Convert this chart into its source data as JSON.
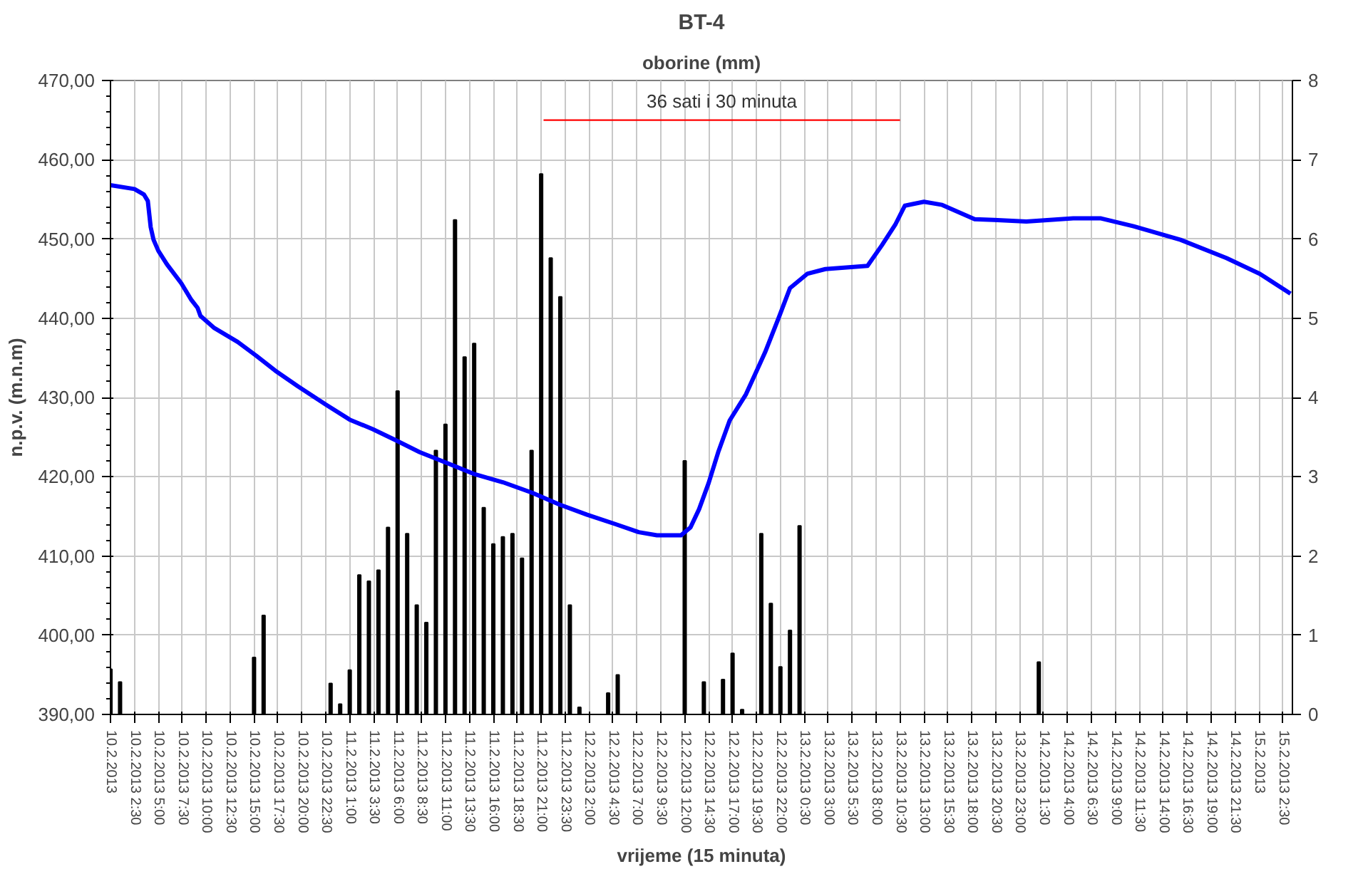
{
  "chart_data": {
    "type": "line",
    "title": "BT-4",
    "y2label": "oborine (mm)",
    "xlabel": "vrijeme (15 minuta)",
    "ylabel": "n.p.v. (m.n.m)",
    "xlim": [
      "2013-02-10T00:00",
      "2013-02-15T03:30"
    ],
    "xticks": [
      {
        "value": "2013-02-10T00:00",
        "label": "10.2.2013"
      },
      {
        "value": "2013-02-10T02:30",
        "label": "10.2.2013 2:30"
      },
      {
        "value": "2013-02-10T05:00",
        "label": "10.2.2013 5:00"
      },
      {
        "value": "2013-02-10T07:30",
        "label": "10.2.2013 7:30"
      },
      {
        "value": "2013-02-10T10:00",
        "label": "10.2.2013 10:00"
      },
      {
        "value": "2013-02-10T12:30",
        "label": "10.2.2013 12:30"
      },
      {
        "value": "2013-02-10T15:00",
        "label": "10.2.2013 15:00"
      },
      {
        "value": "2013-02-10T17:30",
        "label": "10.2.2013 17:30"
      },
      {
        "value": "2013-02-10T20:00",
        "label": "10.2.2013 20:00"
      },
      {
        "value": "2013-02-10T22:30",
        "label": "10.2.2013 22:30"
      },
      {
        "value": "2013-02-11T01:00",
        "label": "11.2.2013 1:00"
      },
      {
        "value": "2013-02-11T03:30",
        "label": "11.2.2013 3:30"
      },
      {
        "value": "2013-02-11T06:00",
        "label": "11.2.2013 6:00"
      },
      {
        "value": "2013-02-11T08:30",
        "label": "11.2.2013 8:30"
      },
      {
        "value": "2013-02-11T11:00",
        "label": "11.2.2013 11:00"
      },
      {
        "value": "2013-02-11T13:30",
        "label": "11.2.2013 13:30"
      },
      {
        "value": "2013-02-11T16:00",
        "label": "11.2.2013 16:00"
      },
      {
        "value": "2013-02-11T18:30",
        "label": "11.2.2013 18:30"
      },
      {
        "value": "2013-02-11T21:00",
        "label": "11.2.2013 21:00"
      },
      {
        "value": "2013-02-11T23:30",
        "label": "11.2.2013 23:30"
      },
      {
        "value": "2013-02-12T02:00",
        "label": "12.2.2013 2:00"
      },
      {
        "value": "2013-02-12T04:30",
        "label": "12.2.2013 4:30"
      },
      {
        "value": "2013-02-12T07:00",
        "label": "12.2.2013 7:00"
      },
      {
        "value": "2013-02-12T09:30",
        "label": "12.2.2013 9:30"
      },
      {
        "value": "2013-02-12T12:00",
        "label": "12.2.2013 12:00"
      },
      {
        "value": "2013-02-12T14:30",
        "label": "12.2.2013 14:30"
      },
      {
        "value": "2013-02-12T17:00",
        "label": "12.2.2013 17:00"
      },
      {
        "value": "2013-02-12T19:30",
        "label": "12.2.2013 19:30"
      },
      {
        "value": "2013-02-12T22:00",
        "label": "12.2.2013 22:00"
      },
      {
        "value": "2013-02-13T00:30",
        "label": "13.2.2013 0:30"
      },
      {
        "value": "2013-02-13T03:00",
        "label": "13.2.2013 3:00"
      },
      {
        "value": "2013-02-13T05:30",
        "label": "13.2.2013 5:30"
      },
      {
        "value": "2013-02-13T08:00",
        "label": "13.2.2013 8:00"
      },
      {
        "value": "2013-02-13T10:30",
        "label": "13.2.2013 10:30"
      },
      {
        "value": "2013-02-13T13:00",
        "label": "13.2.2013 13:00"
      },
      {
        "value": "2013-02-13T15:30",
        "label": "13.2.2013 15:30"
      },
      {
        "value": "2013-02-13T18:00",
        "label": "13.2.2013 18:00"
      },
      {
        "value": "2013-02-13T20:30",
        "label": "13.2.2013 20:30"
      },
      {
        "value": "2013-02-13T23:00",
        "label": "13.2.2013 23:00"
      },
      {
        "value": "2013-02-14T01:30",
        "label": "14.2.2013 1:30"
      },
      {
        "value": "2013-02-14T04:00",
        "label": "14.2.2013 4:00"
      },
      {
        "value": "2013-02-14T06:30",
        "label": "14.2.2013 6:30"
      },
      {
        "value": "2013-02-14T09:00",
        "label": "14.2.2013 9:00"
      },
      {
        "value": "2013-02-14T11:30",
        "label": "14.2.2013 11:30"
      },
      {
        "value": "2013-02-14T14:00",
        "label": "14.2.2013 14:00"
      },
      {
        "value": "2013-02-14T16:30",
        "label": "14.2.2013 16:30"
      },
      {
        "value": "2013-02-14T19:00",
        "label": "14.2.2013 19:00"
      },
      {
        "value": "2013-02-14T21:30",
        "label": "14.2.2013 21:30"
      },
      {
        "value": "2013-02-15T00:00",
        "label": "15.2.2013"
      },
      {
        "value": "2013-02-15T02:30",
        "label": "15.2.2013 2:30"
      }
    ],
    "ylim": [
      390,
      470
    ],
    "yticks": [
      {
        "value": 390,
        "label": "390,00"
      },
      {
        "value": 400,
        "label": "400,00"
      },
      {
        "value": 410,
        "label": "410,00"
      },
      {
        "value": 420,
        "label": "420,00"
      },
      {
        "value": 430,
        "label": "430,00"
      },
      {
        "value": 440,
        "label": "440,00"
      },
      {
        "value": 450,
        "label": "450,00"
      },
      {
        "value": 460,
        "label": "460,00"
      },
      {
        "value": 470,
        "label": "470,00"
      }
    ],
    "y2lim": [
      0,
      8
    ],
    "y2ticks": [
      0,
      1,
      2,
      3,
      4,
      5,
      6,
      7,
      8
    ],
    "grid": true,
    "series": [
      {
        "type": "bar",
        "axis": "y2",
        "color": "#000000",
        "x": [
          "2013-02-10T00:00",
          "2013-02-10T01:00",
          "2013-02-10T15:00",
          "2013-02-10T16:00",
          "2013-02-10T23:00",
          "2013-02-11T00:00",
          "2013-02-11T01:00",
          "2013-02-11T02:00",
          "2013-02-11T03:00",
          "2013-02-11T04:00",
          "2013-02-11T05:00",
          "2013-02-11T06:00",
          "2013-02-11T07:00",
          "2013-02-11T08:00",
          "2013-02-11T09:00",
          "2013-02-11T10:00",
          "2013-02-11T11:00",
          "2013-02-11T12:00",
          "2013-02-11T13:00",
          "2013-02-11T14:00",
          "2013-02-11T15:00",
          "2013-02-11T16:00",
          "2013-02-11T17:00",
          "2013-02-11T18:00",
          "2013-02-11T19:00",
          "2013-02-11T20:00",
          "2013-02-11T21:00",
          "2013-02-11T22:00",
          "2013-02-11T23:00",
          "2013-02-12T00:00",
          "2013-02-12T01:00",
          "2013-02-12T04:00",
          "2013-02-12T05:00",
          "2013-02-12T12:00",
          "2013-02-12T14:00",
          "2013-02-12T16:00",
          "2013-02-12T17:00",
          "2013-02-12T18:00",
          "2013-02-12T20:00",
          "2013-02-12T21:00",
          "2013-02-12T22:00",
          "2013-02-12T23:00",
          "2013-02-13T00:00",
          "2013-02-14T01:00"
        ],
        "values": [
          0.57,
          0.41,
          0.72,
          1.25,
          0.39,
          0.13,
          0.56,
          1.76,
          1.68,
          1.82,
          2.36,
          4.08,
          2.28,
          1.38,
          1.16,
          3.33,
          3.66,
          6.24,
          4.51,
          4.68,
          2.61,
          2.15,
          2.24,
          2.28,
          1.97,
          3.33,
          6.82,
          5.76,
          5.27,
          1.38,
          0.09,
          0.27,
          0.5,
          3.2,
          0.41,
          0.44,
          0.77,
          0.06,
          2.28,
          1.4,
          0.6,
          1.06,
          2.38,
          0.66
        ]
      },
      {
        "axis": "y",
        "color": "#0000ff",
        "x": [
          "2013-02-10T00:00",
          "2013-02-10T02:30",
          "2013-02-10T03:30",
          "2013-02-10T03:54",
          "2013-02-10T04:12",
          "2013-02-10T04:30",
          "2013-02-10T05:00",
          "2013-02-10T05:54",
          "2013-02-10T07:24",
          "2013-02-10T08:24",
          "2013-02-10T09:06",
          "2013-02-10T09:24",
          "2013-02-10T10:48",
          "2013-02-10T13:18",
          "2013-02-10T15:12",
          "2013-02-10T17:12",
          "2013-02-10T19:36",
          "2013-02-10T22:30",
          "2013-02-11T01:00",
          "2013-02-11T03:24",
          "2013-02-11T05:48",
          "2013-02-11T08:18",
          "2013-02-11T11:12",
          "2013-02-11T14:06",
          "2013-02-11T17:00",
          "2013-02-11T20:00",
          "2013-02-11T22:54",
          "2013-02-12T01:48",
          "2013-02-12T04:48",
          "2013-02-12T07:12",
          "2013-02-12T09:06",
          "2013-02-12T11:36",
          "2013-02-12T12:36",
          "2013-02-12T13:30",
          "2013-02-12T14:30",
          "2013-02-12T15:30",
          "2013-02-12T16:42",
          "2013-02-12T18:24",
          "2013-02-12T20:24",
          "2013-02-12T21:54",
          "2013-02-12T23:00",
          "2013-02-13T00:48",
          "2013-02-13T02:42",
          "2013-02-13T07:06",
          "2013-02-13T08:36",
          "2013-02-13T10:00",
          "2013-02-13T11:00",
          "2013-02-13T13:00",
          "2013-02-13T14:54",
          "2013-02-13T18:18",
          "2013-02-13T20:18",
          "2013-02-13T23:42",
          "2013-02-14T04:36",
          "2013-02-14T07:30",
          "2013-02-14T10:54",
          "2013-02-14T15:48",
          "2013-02-14T20:36",
          "2013-02-15T00:06",
          "2013-02-15T03:18"
        ],
        "values": [
          456.8,
          456.3,
          455.6,
          454.8,
          451.5,
          449.9,
          448.5,
          446.8,
          444.4,
          442.4,
          441.3,
          440.3,
          438.8,
          437.0,
          435.3,
          433.4,
          431.4,
          429.1,
          427.2,
          426.0,
          424.6,
          423.1,
          421.7,
          420.3,
          419.3,
          418.0,
          416.5,
          415.2,
          414.0,
          413.0,
          412.6,
          412.6,
          413.6,
          415.9,
          419.2,
          423.1,
          427.1,
          430.4,
          435.7,
          440.3,
          443.8,
          445.6,
          446.2,
          446.6,
          449.2,
          451.8,
          454.2,
          454.7,
          454.3,
          452.5,
          452.4,
          452.2,
          452.6,
          452.6,
          451.6,
          449.9,
          447.6,
          445.6,
          443.1
        ]
      },
      {
        "axis": "y",
        "name": "36 sati i 30 minuta",
        "color": "#ff0000",
        "x": [
          "2013-02-11T21:15",
          "2013-02-13T10:30"
        ],
        "values": [
          465,
          465
        ]
      }
    ]
  }
}
